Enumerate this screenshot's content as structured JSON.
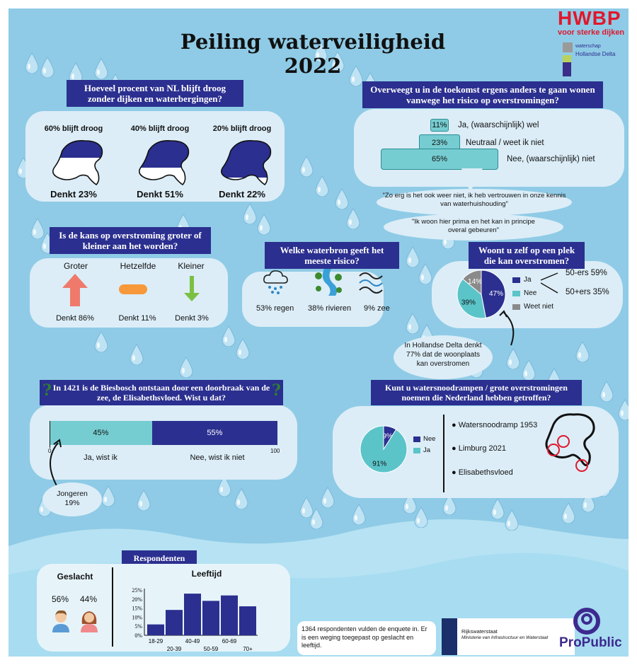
{
  "title": "Peiling waterveiligheid 2022",
  "logos": {
    "hwbp": "HWBP",
    "hwbp_sub": "voor sterke dijken",
    "ws_line1": "waterschap",
    "ws_line2": "Hollandse Delta",
    "rws_1": "Rijkswaterstaat",
    "rws_2": "Ministerie van Infrastructuur en Waterstaat",
    "propublic": "ProPublic"
  },
  "q1": {
    "question": "Hoeveel procent van NL blijft droog zonder dijken en waterbergingen?",
    "options": [
      {
        "label": "60% blijft droog",
        "result": "Denkt 23%",
        "dry": 0.6
      },
      {
        "label": "40% blijft droog",
        "result": "Denkt 51%",
        "dry": 0.4
      },
      {
        "label": "20% blijft droog",
        "result": "Denkt 22%",
        "dry": 0.2
      }
    ]
  },
  "q2": {
    "question": "Overweegt u in de toekomst ergens anders te gaan wonen vanwege het risico op overstromingen?",
    "rows": [
      {
        "pct": "11%",
        "label": "Ja, (waarschijnlijk) wel"
      },
      {
        "pct": "23%",
        "label": "Neutraal / weet ik niet"
      },
      {
        "pct": "65%",
        "label": "Nee, (waarschijnlijk) niet"
      }
    ],
    "quote1": "\"Zo erg is het ook weer niet, ik heb vertrouwen in onze kennis van waterhuishouding\"",
    "quote2": "\"Ik woon hier prima en het kan in principe overal gebeuren\""
  },
  "q3": {
    "question": "Is de kans op overstroming groter of kleiner aan het worden?",
    "options": [
      {
        "label": "Groter",
        "result": "Denkt 86%"
      },
      {
        "label": "Hetzelfde",
        "result": "Denkt 11%"
      },
      {
        "label": "Kleiner",
        "result": "Denkt 3%"
      }
    ]
  },
  "q4": {
    "question": "Welke waterbron geeft het meeste risico?",
    "options": [
      {
        "label": "53% regen"
      },
      {
        "label": "38% rivieren"
      },
      {
        "label": "9% zee"
      }
    ]
  },
  "q5": {
    "question": "Woont u zelf op een plek die kan overstromen?",
    "legend": [
      "Ja",
      "Nee",
      "Weet niet"
    ],
    "slices": [
      {
        "label": "47%",
        "value": 47,
        "color": "#2b2f8f"
      },
      {
        "label": "39%",
        "value": 39,
        "color": "#5bc4c9"
      },
      {
        "label": "14%",
        "value": 14,
        "color": "#8a8a8a"
      }
    ],
    "age1": "50-ers 59%",
    "age2": "50+ers 35%",
    "callout": "In Hollandse Delta denkt 77% dat de woonplaats kan overstromen"
  },
  "q6": {
    "question": "In 1421 is de Biesbosch ontstaan door een doorbraak van de zee, de Elisabethsvloed. Wist u dat?",
    "bars": [
      {
        "pct": "45%",
        "value": 45,
        "label": "Ja, wist ik"
      },
      {
        "pct": "55%",
        "value": 55,
        "label": "Nee, wist ik niet"
      }
    ],
    "axis_min": "0",
    "axis_max": "100",
    "callout": "Jongeren 19%",
    "qmark": "?"
  },
  "q7": {
    "question": "Kunt u watersnoodrampen / grote overstromingen noemen die Nederland hebben getroffen?",
    "legend": [
      "Nee",
      "Ja"
    ],
    "slices": [
      {
        "label": "9%",
        "value": 9,
        "color": "#2b2f8f"
      },
      {
        "label": "91%",
        "value": 91,
        "color": "#5bc4c9"
      }
    ],
    "items": [
      "Watersnoodramp 1953",
      "Limburg 2021",
      "Elisabethsvloed"
    ]
  },
  "resp": {
    "title": "Respondenten",
    "gender_title": "Geslacht",
    "male": "56%",
    "female": "44%",
    "age_title": "Leeftijd",
    "note": "1364 respondenten vulden de enquete in. Er is een weging toegepast op geslacht en leeftijd."
  },
  "chart_data": {
    "type": "bar",
    "categories": [
      "18-29",
      "20-39",
      "40-49",
      "50-59",
      "60-69",
      "70+"
    ],
    "values": [
      6,
      14,
      23,
      19,
      22,
      16
    ],
    "ylim": [
      0,
      25
    ],
    "yticks": [
      "25%",
      "20%",
      "15%",
      "10%",
      "5%",
      "0%"
    ],
    "xlabel": "",
    "ylabel": "",
    "title": "Leeftijd"
  }
}
